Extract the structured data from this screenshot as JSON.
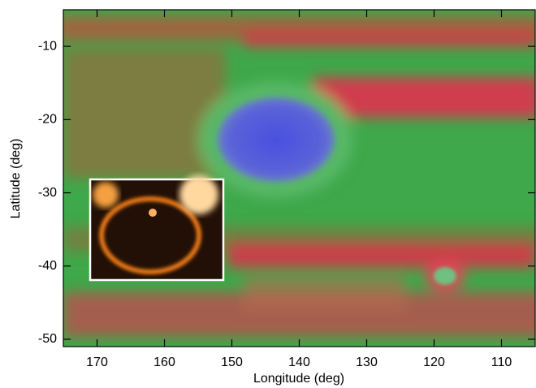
{
  "chart_data": {
    "type": "image",
    "xlabel": "Longitude (deg)",
    "ylabel": "Latitude (deg)",
    "xlim": [
      175,
      105
    ],
    "ylim": [
      -51,
      -5
    ],
    "xticks": [
      170,
      160,
      150,
      140,
      130,
      120,
      110
    ],
    "yticks": [
      -10,
      -20,
      -30,
      -40,
      -50
    ]
  }
}
